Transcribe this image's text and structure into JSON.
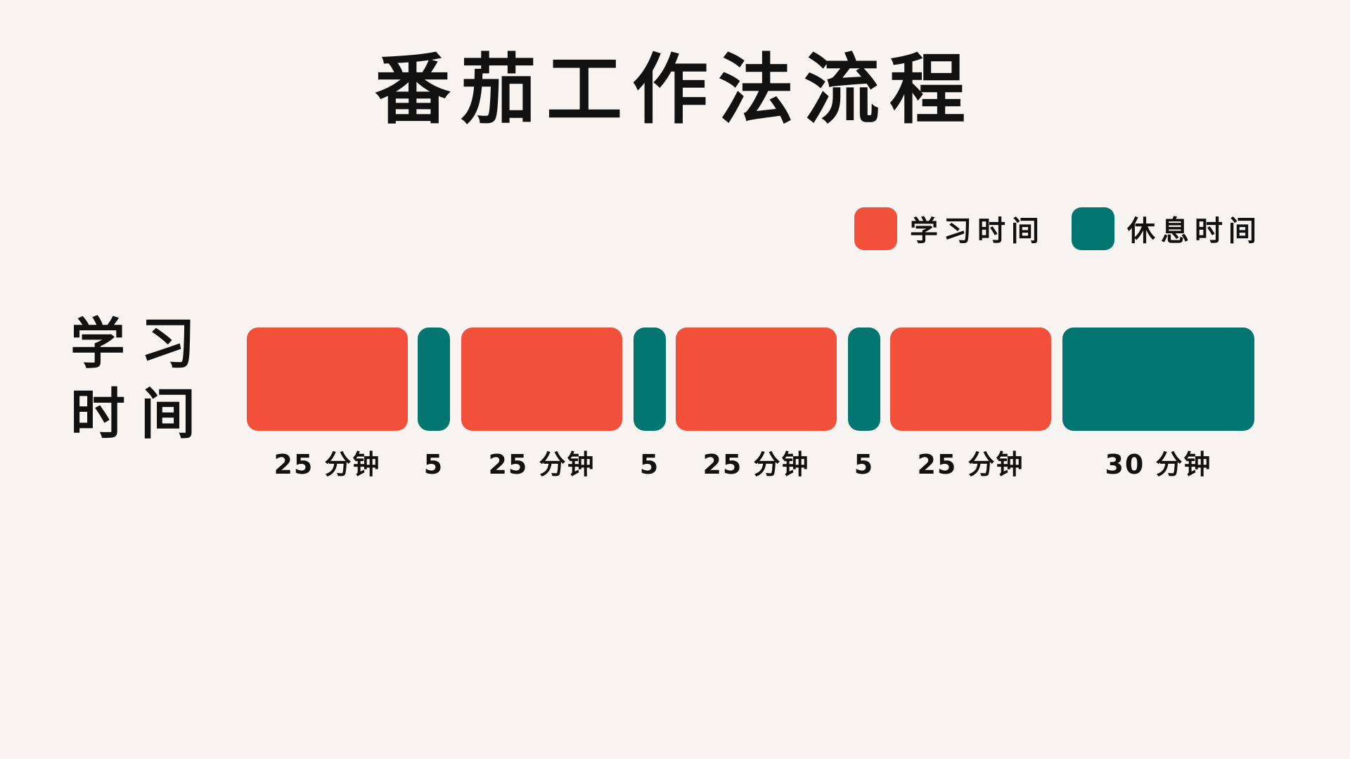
{
  "title": "番茄工作法流程",
  "legend": [
    {
      "label": "学习时间",
      "color": "#f2503a"
    },
    {
      "label": "休息时间",
      "color": "#037571"
    }
  ],
  "row_label": {
    "line1": "学习",
    "line2": "时间"
  },
  "colors": {
    "study": "#f2503a",
    "rest": "#037571",
    "background": "#f7f4f1"
  },
  "blocks": [
    {
      "type": "study",
      "label": "25 分钟"
    },
    {
      "type": "rest",
      "label": "5"
    },
    {
      "type": "study",
      "label": "25 分钟"
    },
    {
      "type": "rest",
      "label": "5"
    },
    {
      "type": "study",
      "label": "25 分钟"
    },
    {
      "type": "rest",
      "label": "5"
    },
    {
      "type": "study",
      "label": "25 分钟"
    },
    {
      "type": "rest",
      "label": "30 分钟"
    }
  ]
}
